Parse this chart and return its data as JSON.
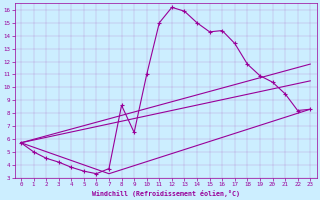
{
  "xlabel": "Windchill (Refroidissement éolien,°C)",
  "bg_color": "#cceeff",
  "line_color": "#990099",
  "xlim": [
    -0.5,
    23.5
  ],
  "ylim": [
    3,
    16.5
  ],
  "xticks": [
    0,
    1,
    2,
    3,
    4,
    5,
    6,
    7,
    8,
    9,
    10,
    11,
    12,
    13,
    14,
    15,
    16,
    17,
    18,
    19,
    20,
    21,
    22,
    23
  ],
  "yticks": [
    3,
    4,
    5,
    6,
    7,
    8,
    9,
    10,
    11,
    12,
    13,
    14,
    15,
    16
  ],
  "main_x": [
    0,
    1,
    2,
    3,
    4,
    5,
    6,
    7,
    8,
    9,
    10,
    11,
    12,
    13,
    14,
    15,
    16,
    17,
    18,
    19,
    20,
    21,
    22,
    23
  ],
  "main_y": [
    5.7,
    5.0,
    4.5,
    4.2,
    3.8,
    3.5,
    3.3,
    3.7,
    8.6,
    6.5,
    11.0,
    15.0,
    16.2,
    15.9,
    15.0,
    14.3,
    14.4,
    13.4,
    11.8,
    10.9,
    10.4,
    9.5,
    8.2,
    8.3
  ],
  "upper_line_x": [
    0,
    23
  ],
  "upper_line_y": [
    5.7,
    11.8
  ],
  "mid_line_x": [
    0,
    23
  ],
  "mid_line_y": [
    5.7,
    10.5
  ],
  "lower_line_x": [
    0,
    7,
    23
  ],
  "lower_line_y": [
    5.7,
    3.3,
    8.3
  ]
}
